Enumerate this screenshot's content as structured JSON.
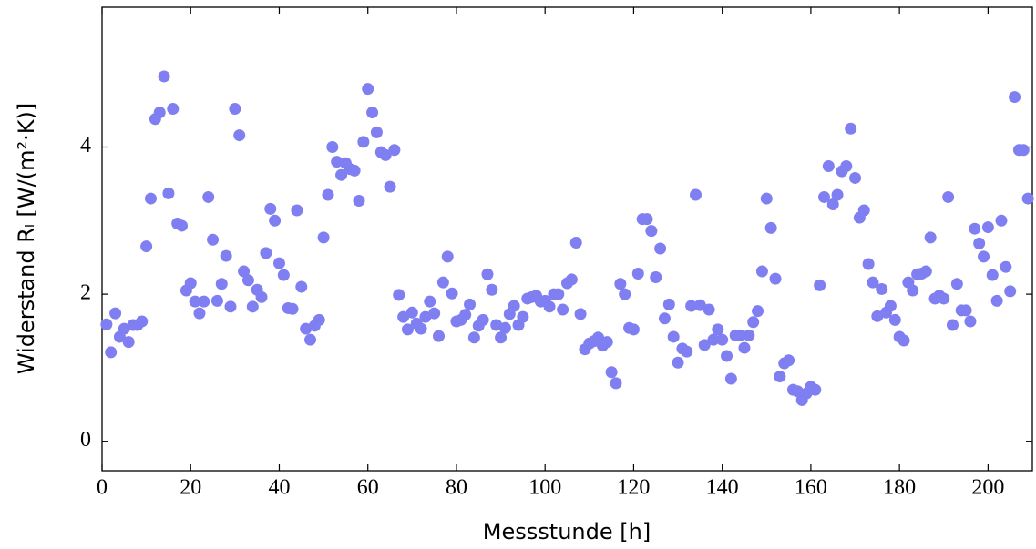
{
  "chart_data": {
    "type": "scatter",
    "x_label": "Messstunde [h]",
    "y_label": "Widerstand Rₗ [W/(m²·K)]",
    "color": "#7f7ff2",
    "xlim": [
      0,
      210
    ],
    "ylim": [
      -0.4,
      5.9
    ],
    "xticks": [
      0,
      20,
      40,
      60,
      80,
      100,
      120,
      140,
      160,
      180,
      200
    ],
    "yticks": [
      0,
      2,
      4
    ],
    "series": [
      {
        "name": null,
        "color": "#7f7ff2",
        "x": [
          1,
          2,
          3,
          4,
          5,
          6,
          7,
          8,
          9,
          10,
          11,
          12,
          13,
          14,
          15,
          16,
          17,
          18,
          19,
          20,
          21,
          22,
          23,
          24,
          25,
          26,
          27,
          28,
          29,
          30,
          31,
          32,
          33,
          34,
          35,
          36,
          37,
          38,
          39,
          40,
          41,
          42,
          43,
          44,
          45,
          46,
          47,
          48,
          49,
          50,
          51,
          52,
          53,
          54,
          55,
          56,
          57,
          58,
          59,
          60,
          61,
          62,
          63,
          64,
          65,
          66,
          67,
          68,
          69,
          70,
          71,
          72,
          73,
          74,
          75,
          76,
          77,
          78,
          79,
          80,
          81,
          82,
          83,
          84,
          85,
          86,
          87,
          88,
          89,
          90,
          91,
          92,
          93,
          94,
          95,
          96,
          97,
          98,
          99,
          100,
          101,
          102,
          103,
          104,
          105,
          106,
          107,
          108,
          109,
          110,
          111,
          112,
          113,
          114,
          115,
          116,
          117,
          118,
          119,
          120,
          121,
          122,
          123,
          124,
          125,
          126,
          127,
          128,
          129,
          130,
          131,
          132,
          133,
          134,
          135,
          136,
          137,
          138,
          139,
          140,
          141,
          142,
          143,
          144,
          145,
          146,
          147,
          148,
          149,
          150,
          151,
          152,
          153,
          154,
          155,
          156,
          157,
          158,
          159,
          160,
          161,
          162,
          163,
          164,
          165,
          166,
          167,
          168,
          169,
          170,
          171,
          172,
          173,
          174,
          175,
          176,
          177,
          178,
          179,
          180,
          181,
          182,
          183,
          184,
          185,
          186,
          187,
          188,
          189,
          190,
          191,
          192,
          193,
          194,
          195,
          196,
          197,
          198,
          199,
          200,
          201,
          202,
          203,
          204,
          205,
          206,
          207,
          208,
          209
        ],
        "values": [
          1.59,
          1.21,
          1.74,
          1.42,
          1.53,
          1.35,
          1.58,
          1.58,
          1.63,
          2.65,
          3.3,
          4.38,
          4.47,
          4.96,
          3.37,
          4.52,
          2.96,
          2.93,
          2.05,
          2.15,
          1.9,
          1.74,
          1.9,
          3.32,
          2.74,
          1.91,
          2.14,
          2.52,
          1.83,
          4.52,
          4.16,
          2.31,
          2.19,
          1.83,
          2.06,
          1.96,
          2.56,
          3.16,
          3.0,
          2.42,
          2.26,
          1.81,
          1.8,
          3.14,
          2.1,
          1.53,
          1.38,
          1.57,
          1.65,
          2.77,
          3.35,
          4.0,
          3.8,
          3.62,
          3.78,
          3.7,
          3.68,
          3.27,
          4.07,
          4.79,
          4.47,
          4.2,
          3.93,
          3.89,
          3.46,
          3.96,
          1.99,
          1.69,
          1.52,
          1.75,
          1.6,
          1.53,
          1.69,
          1.9,
          1.74,
          1.43,
          2.16,
          2.51,
          2.01,
          1.63,
          1.65,
          1.72,
          1.86,
          1.41,
          1.57,
          1.65,
          2.27,
          2.06,
          1.58,
          1.41,
          1.54,
          1.73,
          1.84,
          1.58,
          1.69,
          1.94,
          1.96,
          1.98,
          1.9,
          1.91,
          1.83,
          2.0,
          2.0,
          1.79,
          2.15,
          2.2,
          2.7,
          1.73,
          1.25,
          1.33,
          1.36,
          1.41,
          1.3,
          1.35,
          0.94,
          0.79,
          2.14,
          2.0,
          1.54,
          1.52,
          2.28,
          3.02,
          3.02,
          2.86,
          2.23,
          2.62,
          1.67,
          1.86,
          1.42,
          1.07,
          1.26,
          1.22,
          1.84,
          3.35,
          1.85,
          1.31,
          1.79,
          1.38,
          1.52,
          1.38,
          1.16,
          0.85,
          1.44,
          1.44,
          1.27,
          1.44,
          1.62,
          1.77,
          2.31,
          3.3,
          2.9,
          2.21,
          0.88,
          1.06,
          1.1,
          0.7,
          0.68,
          0.56,
          0.65,
          0.74,
          0.7,
          2.12,
          3.32,
          3.74,
          3.22,
          3.35,
          3.67,
          3.74,
          4.25,
          3.58,
          3.04,
          3.14,
          2.41,
          2.16,
          1.7,
          2.07,
          1.75,
          1.84,
          1.65,
          1.42,
          1.37,
          2.16,
          2.05,
          2.27,
          2.28,
          2.31,
          2.77,
          1.94,
          1.98,
          1.94,
          3.32,
          1.58,
          2.14,
          1.78,
          1.78,
          1.63,
          2.89,
          2.69,
          2.51,
          2.91,
          2.26,
          1.91,
          3.0,
          2.37,
          2.04,
          4.68,
          3.96,
          3.96,
          3.3
        ]
      }
    ]
  }
}
